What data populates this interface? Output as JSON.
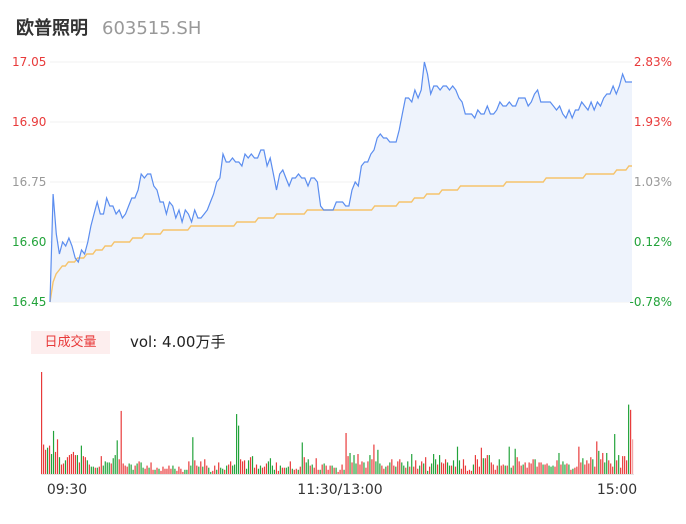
{
  "header": {
    "name": "欧普照明",
    "code": "603515.SH"
  },
  "volume_panel": {
    "tag_label": "日成交量",
    "vol_text": "vol: 4.00万手"
  },
  "colors": {
    "price_line": "#5b8def",
    "avg_line": "#f5c36b",
    "up": "#e83a3a",
    "down": "#22a33a",
    "flat_text": "#999999",
    "fill": "#eef3fc"
  },
  "chart_data": [
    {
      "type": "line",
      "title": "",
      "x_ticks": [
        "09:30",
        "11:30/13:00",
        "15:00"
      ],
      "y_ticks": [
        "17.05",
        "16.90",
        "16.75",
        "16.60",
        "16.45"
      ],
      "pct_ticks": [
        "2.83%",
        "1.93%",
        "1.03%",
        "0.12%",
        "-0.78%"
      ],
      "ylim": [
        16.45,
        17.05
      ],
      "series": [
        {
          "kind": "price",
          "values": [
            16.45,
            16.72,
            16.62,
            16.57,
            16.6,
            16.59,
            16.61,
            16.59,
            16.56,
            16.55,
            16.58,
            16.57,
            16.6,
            16.64,
            16.67,
            16.7,
            16.67,
            16.67,
            16.71,
            16.69,
            16.69,
            16.67,
            16.68,
            16.66,
            16.67,
            16.69,
            16.71,
            16.71,
            16.73,
            16.77,
            16.76,
            16.77,
            16.77,
            16.74,
            16.73,
            16.7,
            16.7,
            16.67,
            16.7,
            16.69,
            16.66,
            16.68,
            16.65,
            16.68,
            16.67,
            16.65,
            16.68,
            16.66,
            16.66,
            16.67,
            16.68,
            16.7,
            16.72,
            16.75,
            16.76,
            16.82,
            16.8,
            16.8,
            16.81,
            16.8,
            16.8,
            16.79,
            16.82,
            16.81,
            16.82,
            16.81,
            16.81,
            16.83,
            16.83,
            16.79,
            16.81,
            16.77,
            16.73,
            16.77,
            16.78,
            16.76,
            16.74,
            16.76,
            16.76,
            16.77,
            16.76,
            16.76,
            16.74,
            16.76,
            16.76,
            16.75,
            16.69,
            16.68,
            16.68,
            16.68,
            16.68,
            16.7,
            16.7,
            16.7,
            16.69,
            16.69,
            16.73,
            16.75,
            16.74,
            16.79,
            16.8,
            16.8,
            16.82,
            16.83,
            16.86,
            16.87,
            16.86,
            16.86,
            16.85,
            16.85,
            16.85,
            16.88,
            16.92,
            16.96,
            16.96,
            16.95,
            16.98,
            16.96,
            16.98,
            17.05,
            17.02,
            16.97,
            16.99,
            16.99,
            16.98,
            16.99,
            16.99,
            16.98,
            16.99,
            16.98,
            16.96,
            16.95,
            16.92,
            16.92,
            16.92,
            16.91,
            16.93,
            16.92,
            16.92,
            16.94,
            16.92,
            16.92,
            16.93,
            16.95,
            16.94,
            16.94,
            16.95,
            16.94,
            16.94,
            16.96,
            16.96,
            16.96,
            16.94,
            16.95,
            16.97,
            16.98,
            16.95,
            16.95,
            16.95,
            16.95,
            16.94,
            16.93,
            16.94,
            16.92,
            16.91,
            16.93,
            16.91,
            16.93,
            16.93,
            16.95,
            16.94,
            16.93,
            16.95,
            16.93,
            16.95,
            16.94,
            16.96,
            16.97,
            16.97,
            16.99,
            16.97,
            16.99,
            17.02,
            17.0,
            17.0,
            17.0
          ]
        },
        {
          "kind": "average",
          "values": [
            16.45,
            16.5,
            16.52,
            16.53,
            16.54,
            16.54,
            16.55,
            16.55,
            16.55,
            16.56,
            16.56,
            16.56,
            16.57,
            16.57,
            16.57,
            16.58,
            16.58,
            16.58,
            16.59,
            16.59,
            16.59,
            16.6,
            16.6,
            16.6,
            16.6,
            16.6,
            16.6,
            16.61,
            16.61,
            16.61,
            16.61,
            16.62,
            16.62,
            16.62,
            16.62,
            16.62,
            16.62,
            16.63,
            16.63,
            16.63,
            16.63,
            16.63,
            16.63,
            16.63,
            16.63,
            16.63,
            16.64,
            16.64,
            16.64,
            16.64,
            16.64,
            16.64,
            16.64,
            16.64,
            16.64,
            16.64,
            16.64,
            16.64,
            16.64,
            16.64,
            16.64,
            16.65,
            16.65,
            16.65,
            16.65,
            16.65,
            16.65,
            16.65,
            16.66,
            16.66,
            16.66,
            16.66,
            16.66,
            16.66,
            16.67,
            16.67,
            16.67,
            16.67,
            16.67,
            16.67,
            16.67,
            16.67,
            16.67,
            16.67,
            16.68,
            16.68,
            16.68,
            16.68,
            16.68,
            16.68,
            16.68,
            16.68,
            16.68,
            16.68,
            16.68,
            16.68,
            16.68,
            16.68,
            16.68,
            16.68,
            16.68,
            16.68,
            16.68,
            16.68,
            16.68,
            16.68,
            16.69,
            16.69,
            16.69,
            16.69,
            16.69,
            16.69,
            16.69,
            16.69,
            16.7,
            16.7,
            16.7,
            16.7,
            16.7,
            16.71,
            16.71,
            16.71,
            16.71,
            16.72,
            16.72,
            16.72,
            16.72,
            16.72,
            16.73,
            16.73,
            16.73,
            16.73,
            16.73,
            16.73,
            16.74,
            16.74,
            16.74,
            16.74,
            16.74,
            16.74,
            16.74,
            16.74,
            16.74,
            16.74,
            16.74,
            16.74,
            16.74,
            16.74,
            16.74,
            16.75,
            16.75,
            16.75,
            16.75,
            16.75,
            16.75,
            16.75,
            16.75,
            16.75,
            16.75,
            16.75,
            16.75,
            16.75,
            16.76,
            16.76,
            16.76,
            16.76,
            16.76,
            16.76,
            16.76,
            16.76,
            16.76,
            16.76,
            16.76,
            16.76,
            16.76,
            16.77,
            16.77,
            16.77,
            16.77,
            16.77,
            16.77,
            16.77,
            16.77,
            16.77,
            16.77,
            16.78,
            16.78,
            16.78,
            16.78,
            16.79,
            16.79
          ]
        }
      ]
    },
    {
      "type": "bar",
      "title": "",
      "values": [
        97,
        28,
        23,
        25,
        27,
        19,
        41,
        21,
        33,
        16,
        9,
        10,
        13,
        16,
        18,
        19,
        21,
        18,
        18,
        11,
        27,
        17,
        16,
        13,
        9,
        7,
        7,
        6,
        6,
        7,
        17,
        8,
        12,
        11,
        11,
        10,
        15,
        18,
        32,
        14,
        60,
        10,
        8,
        7,
        10,
        9,
        4,
        8,
        10,
        12,
        11,
        6,
        5,
        8,
        6,
        11,
        4,
        4,
        6,
        5,
        3,
        7,
        5,
        5,
        8,
        5,
        8,
        5,
        3,
        7,
        5,
        2,
        4,
        4,
        12,
        8,
        35,
        13,
        8,
        7,
        12,
        7,
        14,
        8,
        6,
        2,
        3,
        8,
        4,
        11,
        6,
        5,
        4,
        8,
        9,
        12,
        8,
        9,
        57,
        46,
        14,
        12,
        13,
        5,
        13,
        16,
        17,
        6,
        9,
        5,
        8,
        6,
        7,
        10,
        12,
        15,
        8,
        4,
        11,
        3,
        8,
        6,
        6,
        6,
        7,
        12,
        5,
        4,
        5,
        4,
        7,
        30,
        16,
        11,
        14,
        8,
        9,
        6,
        15,
        4,
        4,
        9,
        10,
        8,
        4,
        8,
        8,
        6,
        6,
        2,
        4,
        9,
        4,
        39,
        17,
        20,
        11,
        18,
        10,
        19,
        9,
        12,
        11,
        6,
        12,
        18,
        14,
        28,
        12,
        23,
        10,
        8,
        5,
        7,
        8,
        11,
        14,
        8,
        7,
        12,
        14,
        11,
        8,
        6,
        12,
        7,
        19,
        7,
        13,
        5,
        8,
        12,
        10,
        16,
        3,
        7,
        10,
        19,
        14,
        9,
        18,
        11,
        10,
        14,
        11,
        8,
        8,
        13,
        7,
        26,
        13,
        5,
        14,
        8,
        3,
        4,
        3,
        9,
        18,
        14,
        7,
        25,
        15,
        15,
        18,
        18,
        11,
        9,
        4,
        8,
        14,
        8,
        9,
        8,
        8,
        26,
        6,
        8,
        24,
        16,
        12,
        8,
        9,
        11,
        6,
        11,
        10,
        14,
        14,
        7,
        11,
        11,
        9,
        9,
        10,
        8,
        7,
        8,
        7,
        13,
        20,
        9,
        12,
        9,
        10,
        9,
        4,
        5,
        6,
        7,
        26,
        11,
        15,
        9,
        13,
        10,
        16,
        14,
        7,
        31,
        22,
        14,
        20,
        11,
        20,
        13,
        10,
        7,
        38,
        13,
        18,
        6,
        17,
        17,
        13,
        66,
        61,
        33
      ],
      "up": [
        1,
        1,
        1,
        0,
        1,
        0,
        0,
        1,
        1,
        0,
        1,
        1,
        0,
        1,
        1,
        1,
        1,
        1,
        0,
        1,
        0,
        1,
        1,
        0,
        1,
        0,
        0,
        1,
        0,
        1,
        1,
        0,
        0,
        0,
        0,
        1,
        0,
        0,
        0,
        1,
        1,
        1,
        1,
        1,
        0,
        0,
        0,
        1,
        0,
        1,
        0,
        0,
        1,
        1,
        0,
        1,
        1,
        0,
        1,
        0,
        1,
        1,
        1,
        1,
        1,
        1,
        0,
        0,
        1,
        1,
        1,
        1,
        0,
        0,
        1,
        0,
        0,
        1,
        1,
        0,
        1,
        0,
        1,
        1,
        0,
        0,
        1,
        1,
        0,
        1,
        0,
        0,
        1,
        0,
        1,
        1,
        0,
        0,
        0,
        0,
        1,
        1,
        1,
        0,
        0,
        1,
        0,
        1,
        1,
        0,
        0,
        1,
        1,
        1,
        0,
        0,
        0,
        0,
        1,
        1,
        0,
        1,
        1,
        0,
        0,
        1,
        0,
        1,
        1,
        0,
        1,
        0,
        1,
        0,
        0,
        1,
        0,
        1,
        1,
        1,
        0,
        1,
        0,
        1,
        1,
        1,
        0,
        1,
        0,
        1,
        1,
        1,
        0,
        1,
        1,
        0,
        1,
        0,
        0,
        1,
        1,
        1,
        0,
        1,
        1,
        0,
        1,
        1,
        0,
        0,
        0,
        1,
        1,
        0,
        1,
        0,
        1,
        1,
        0,
        1,
        1,
        0,
        0,
        1,
        0,
        1,
        0,
        1,
        1,
        1,
        0,
        1,
        0,
        1,
        0,
        1,
        0,
        0,
        0,
        1,
        0,
        1,
        1,
        1,
        0,
        0,
        1,
        0,
        1,
        0,
        0,
        1,
        1,
        1,
        1,
        1,
        1,
        0,
        1,
        1,
        1,
        1,
        0,
        1,
        1,
        0,
        1,
        1,
        1,
        1,
        0,
        1,
        1,
        0,
        1,
        0,
        0,
        1,
        0,
        1,
        1,
        1,
        0,
        1,
        1,
        1,
        1,
        1,
        0,
        1,
        1,
        1,
        0,
        1,
        1,
        0,
        0,
        0,
        1,
        1,
        0,
        1,
        0,
        0,
        1,
        0,
        1,
        0,
        1,
        1,
        1,
        1,
        0,
        1,
        1,
        1,
        1,
        0,
        1,
        1,
        0,
        1,
        1,
        0,
        0,
        1,
        1,
        1,
        0,
        1,
        0,
        1,
        1,
        1,
        1,
        0,
        1,
        0,
        1,
        1,
        1,
        1,
        1,
        1
      ]
    }
  ]
}
